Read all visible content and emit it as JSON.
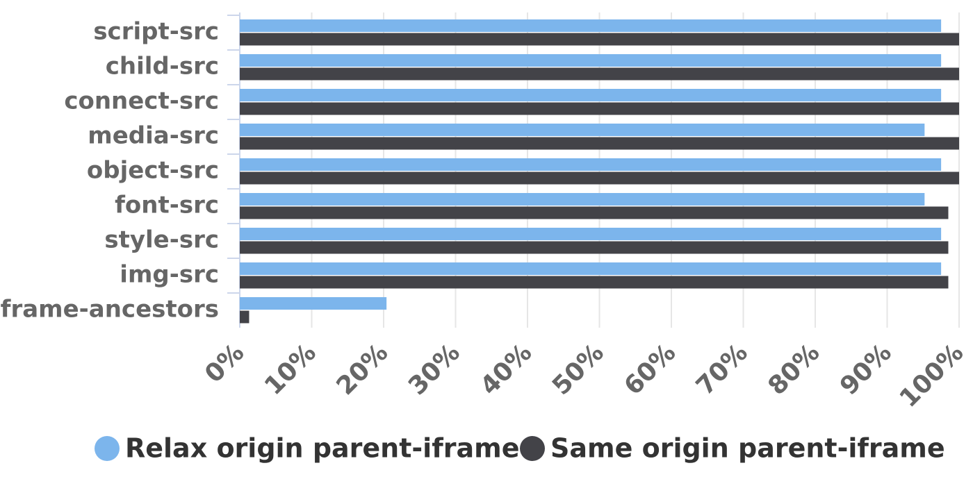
{
  "chart_data": {
    "type": "bar",
    "orientation": "horizontal",
    "categories": [
      "script-src",
      "child-src",
      "connect-src",
      "media-src",
      "object-src",
      "font-src",
      "style-src",
      "img-src",
      "frame-ancestors"
    ],
    "series": [
      {
        "name": "Relax origin parent-iframe",
        "color": "#7cb5ec",
        "values": [
          97.5,
          97.5,
          97.5,
          95.2,
          97.5,
          95.2,
          97.5,
          97.5,
          20.4
        ]
      },
      {
        "name": "Same origin parent-iframe",
        "color": "#434348",
        "values": [
          100,
          100,
          100,
          100,
          100,
          98.5,
          98.5,
          98.5,
          1.3
        ]
      }
    ],
    "xlim": [
      0,
      100
    ],
    "xticks": [
      {
        "value": 0,
        "label": "0%"
      },
      {
        "value": 10,
        "label": "10%"
      },
      {
        "value": 20,
        "label": "20%"
      },
      {
        "value": 30,
        "label": "30%"
      },
      {
        "value": 40,
        "label": "40%"
      },
      {
        "value": 50,
        "label": "50%"
      },
      {
        "value": 60,
        "label": "60%"
      },
      {
        "value": 70,
        "label": "70%"
      },
      {
        "value": 80,
        "label": "80%"
      },
      {
        "value": 90,
        "label": "90%"
      },
      {
        "value": 100,
        "label": "100%"
      }
    ],
    "grid": true,
    "legend": "bottom"
  }
}
